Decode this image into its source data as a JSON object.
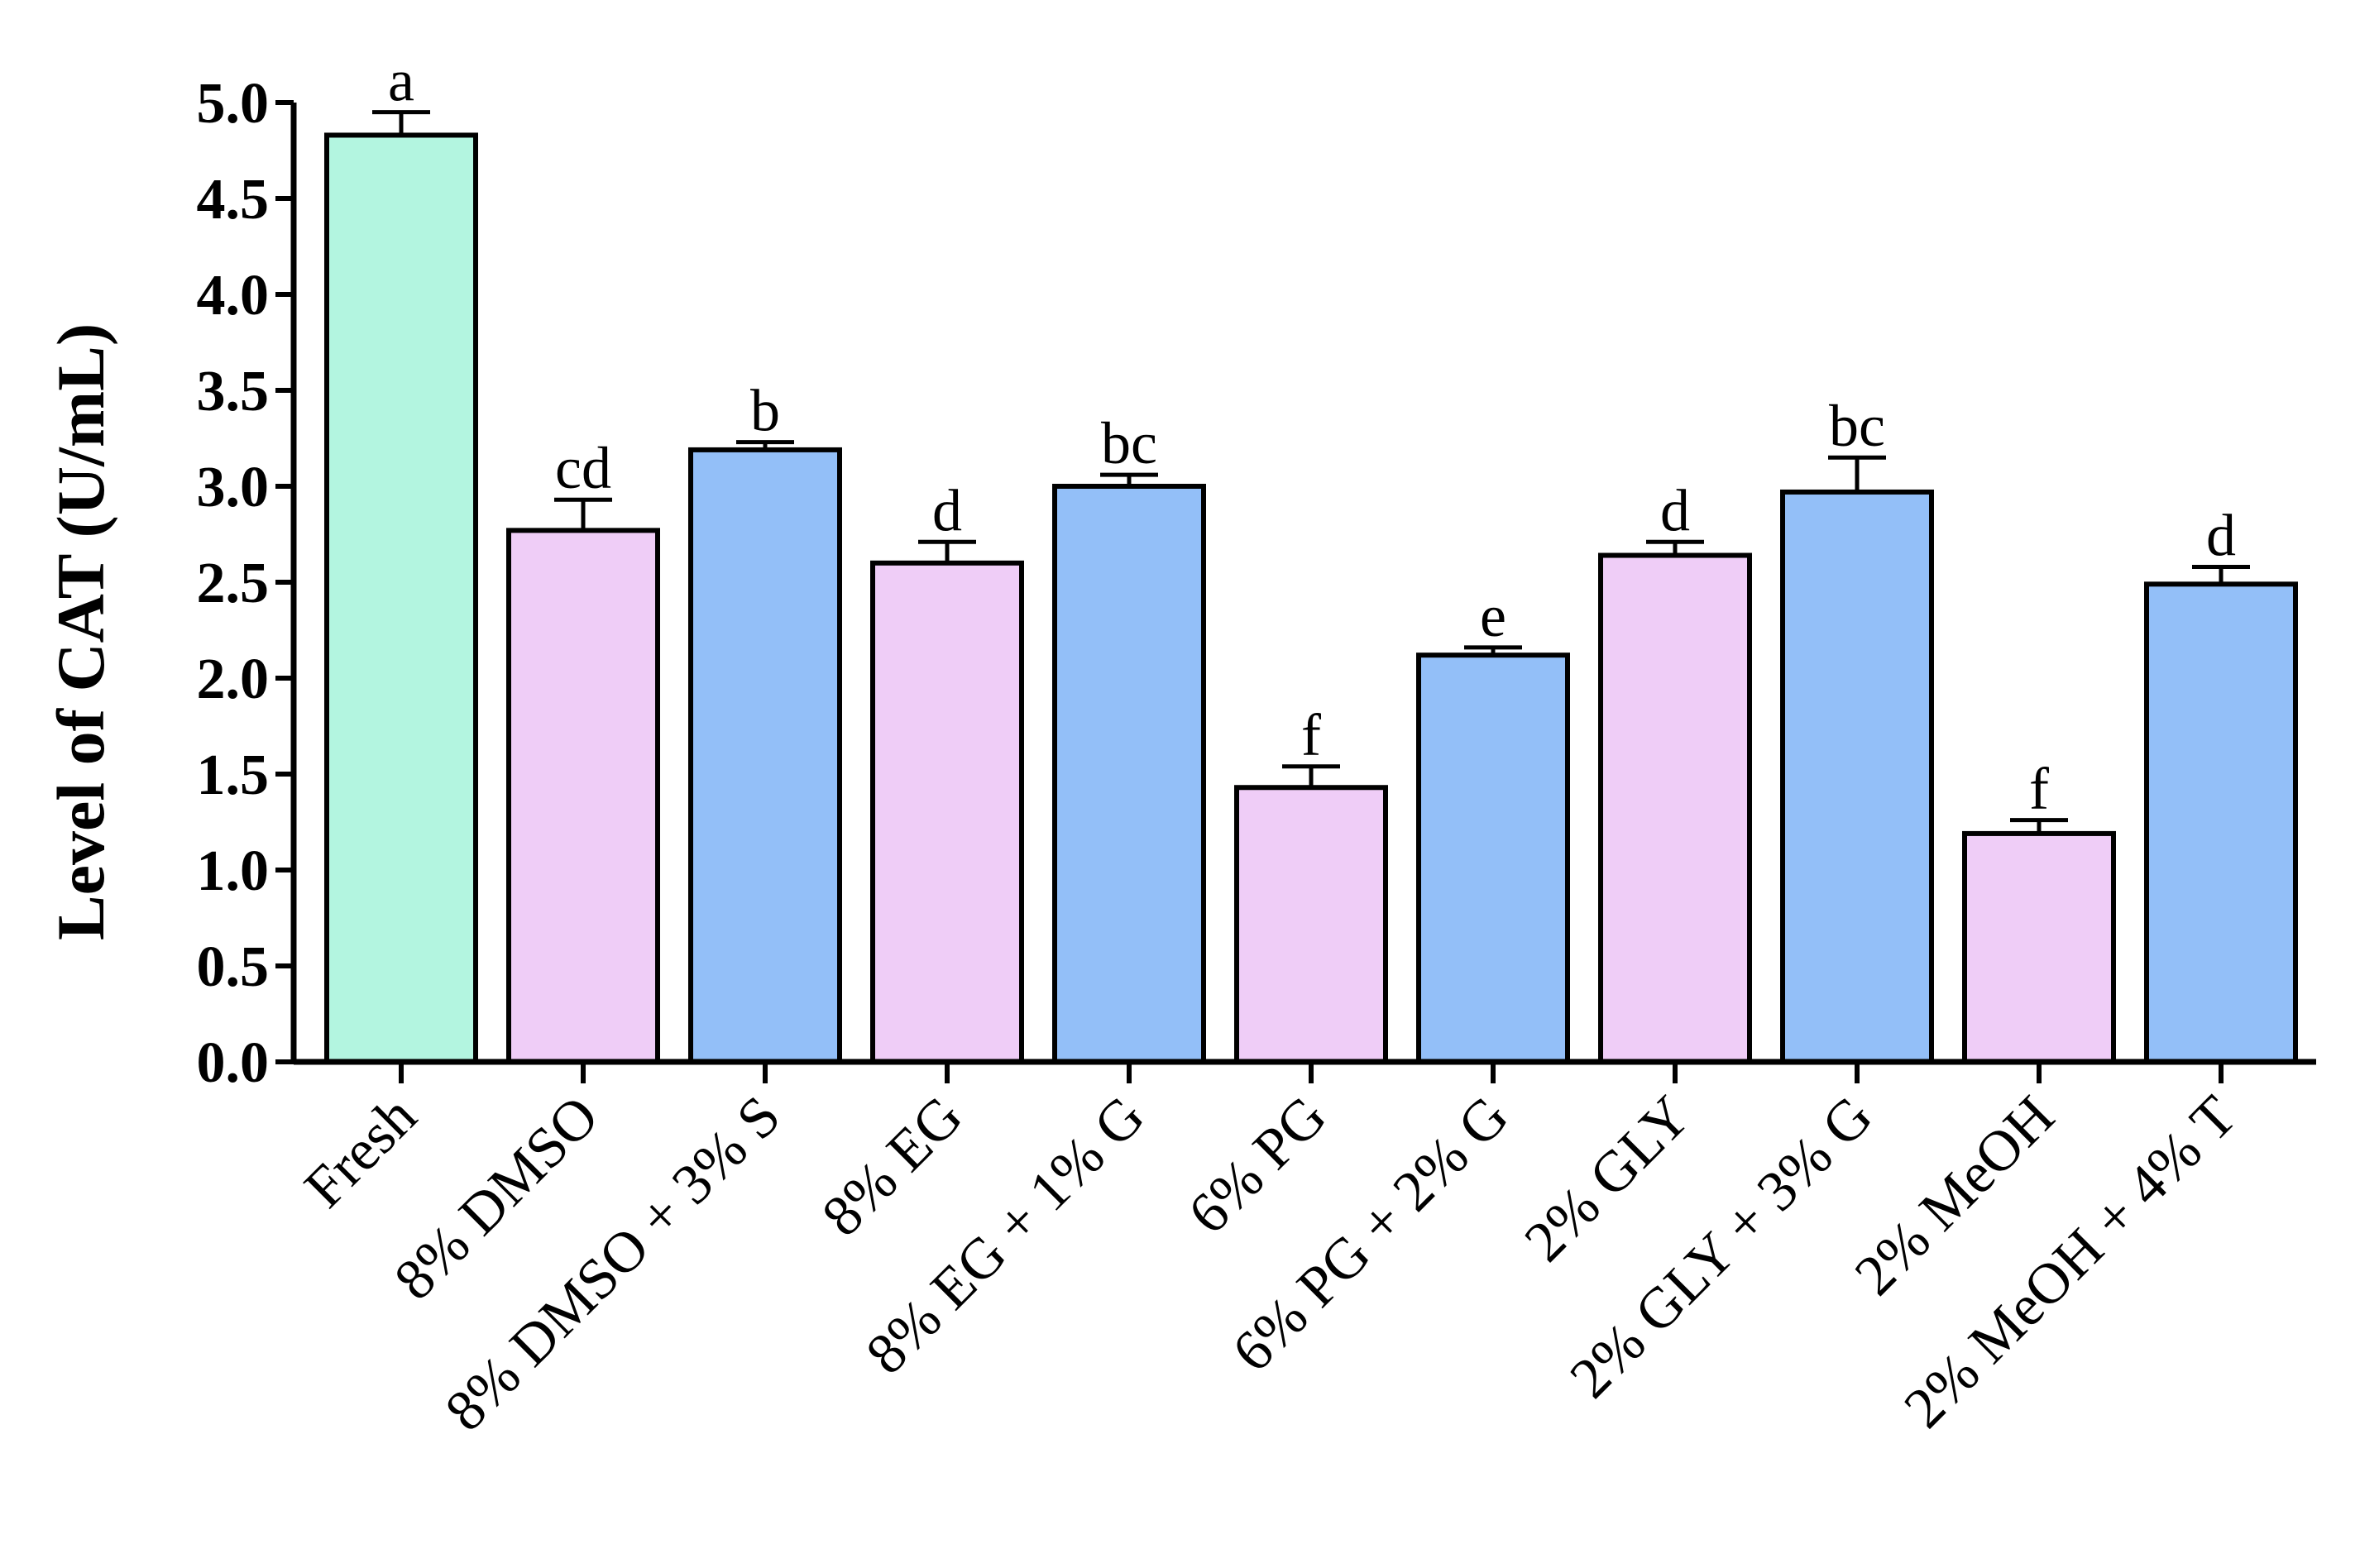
{
  "chart_data": {
    "type": "bar",
    "title": "",
    "xlabel": "",
    "ylabel": "Level of CAT (U/mL)",
    "ylim": [
      0,
      5.0
    ],
    "yticks": [
      "0.0",
      "0.5",
      "1.0",
      "1.5",
      "2.0",
      "2.5",
      "3.0",
      "3.5",
      "4.0",
      "4.5",
      "5.0"
    ],
    "categories": [
      "Fresh",
      "8% DMSO",
      "8% DMSO + 3% S",
      "8% EG",
      "8% EG + 1% G",
      "6% PG",
      "6% PG + 2% G",
      "2% GLY",
      "2% GLY + 3% G",
      "2% MeOH",
      "2% MeOH + 4% T"
    ],
    "values": [
      4.83,
      2.77,
      3.19,
      2.6,
      3.0,
      1.43,
      2.12,
      2.64,
      2.97,
      1.19,
      2.49
    ],
    "errors": [
      0.12,
      0.16,
      0.04,
      0.11,
      0.06,
      0.11,
      0.04,
      0.07,
      0.18,
      0.07,
      0.09
    ],
    "significance_letters": [
      "a",
      "cd",
      "b",
      "d",
      "bc",
      "f",
      "e",
      "d",
      "bc",
      "f",
      "d"
    ],
    "bar_colors": [
      "#b3f5e0",
      "#efcdf7",
      "#93bff8",
      "#efcdf7",
      "#93bff8",
      "#efcdf7",
      "#93bff8",
      "#efcdf7",
      "#93bff8",
      "#efcdf7",
      "#93bff8"
    ],
    "grid": false,
    "legend": "none"
  }
}
